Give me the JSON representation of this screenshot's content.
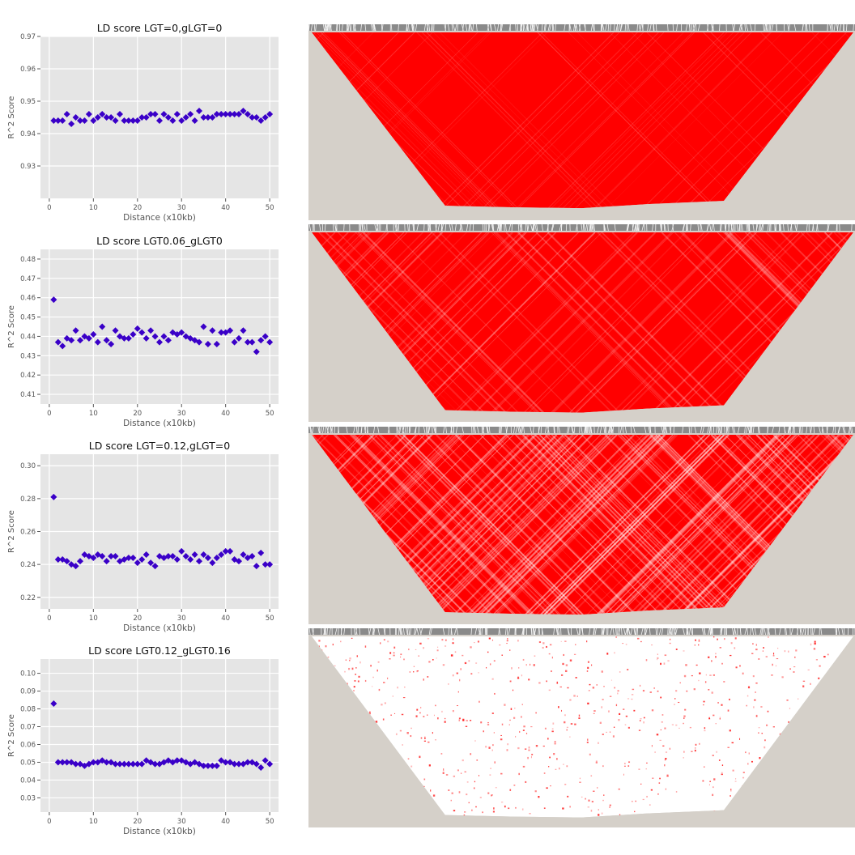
{
  "colors": {
    "panel_bg": "#e5e5e5",
    "grid": "#ffffff",
    "marker": "#3a00c8",
    "axis_text": "#555555",
    "title_text": "#111111",
    "heatmap_bg": "#d5d0c9",
    "heatmap_red": "#ff0000"
  },
  "chart_data": [
    {
      "type": "scatter",
      "title": "LD score LGT=0,gLGT=0",
      "xlabel": "Distance (x10kb)",
      "ylabel": "R^2 Score",
      "xlim": [
        -2,
        52
      ],
      "ylim": [
        0.92,
        0.97
      ],
      "xticks": [
        0,
        10,
        20,
        30,
        40,
        50
      ],
      "yticks": [
        0.93,
        0.94,
        0.95,
        0.96,
        0.97
      ],
      "x": [
        1,
        2,
        3,
        4,
        5,
        6,
        7,
        8,
        9,
        10,
        11,
        12,
        13,
        14,
        15,
        16,
        17,
        18,
        19,
        20,
        21,
        22,
        23,
        24,
        25,
        26,
        27,
        28,
        29,
        30,
        31,
        32,
        33,
        34,
        35,
        36,
        37,
        38,
        39,
        40,
        41,
        42,
        43,
        44,
        45,
        46,
        47,
        48,
        49,
        50
      ],
      "values": [
        0.944,
        0.944,
        0.944,
        0.946,
        0.943,
        0.945,
        0.944,
        0.944,
        0.946,
        0.944,
        0.945,
        0.946,
        0.945,
        0.945,
        0.944,
        0.946,
        0.944,
        0.944,
        0.944,
        0.944,
        0.945,
        0.945,
        0.946,
        0.946,
        0.944,
        0.946,
        0.945,
        0.944,
        0.946,
        0.944,
        0.945,
        0.946,
        0.944,
        0.947,
        0.945,
        0.945,
        0.945,
        0.946,
        0.946,
        0.946,
        0.946,
        0.946,
        0.946,
        0.947,
        0.946,
        0.945,
        0.945,
        0.944,
        0.945,
        0.946
      ],
      "grid": true
    },
    {
      "type": "scatter",
      "title": "LD score LGT0.06_gLGT0",
      "xlabel": "Distance (x10kb)",
      "ylabel": "R^2 Score",
      "xlim": [
        -2,
        52
      ],
      "ylim": [
        0.405,
        0.485
      ],
      "xticks": [
        0,
        10,
        20,
        30,
        40,
        50
      ],
      "yticks": [
        0.41,
        0.42,
        0.43,
        0.44,
        0.45,
        0.46,
        0.47,
        0.48
      ],
      "x": [
        1,
        2,
        3,
        4,
        5,
        6,
        7,
        8,
        9,
        10,
        11,
        12,
        13,
        14,
        15,
        16,
        17,
        18,
        19,
        20,
        21,
        22,
        23,
        24,
        25,
        26,
        27,
        28,
        29,
        30,
        31,
        32,
        33,
        34,
        35,
        36,
        37,
        38,
        39,
        40,
        41,
        42,
        43,
        44,
        45,
        46,
        47,
        48,
        49,
        50
      ],
      "values": [
        0.459,
        0.437,
        0.435,
        0.439,
        0.438,
        0.443,
        0.438,
        0.44,
        0.439,
        0.441,
        0.437,
        0.445,
        0.438,
        0.436,
        0.443,
        0.44,
        0.439,
        0.439,
        0.441,
        0.444,
        0.442,
        0.439,
        0.443,
        0.44,
        0.437,
        0.44,
        0.438,
        0.442,
        0.441,
        0.442,
        0.44,
        0.439,
        0.438,
        0.437,
        0.445,
        0.436,
        0.443,
        0.436,
        0.442,
        0.442,
        0.443,
        0.437,
        0.439,
        0.443,
        0.437,
        0.437,
        0.432,
        0.438,
        0.44,
        0.437
      ],
      "grid": true
    },
    {
      "type": "scatter",
      "title": "LD score LGT=0.12,gLGT=0",
      "xlabel": "Distance (x10kb)",
      "ylabel": "R^2 Score",
      "xlim": [
        -2,
        52
      ],
      "ylim": [
        0.213,
        0.307
      ],
      "xticks": [
        0,
        10,
        20,
        30,
        40,
        50
      ],
      "yticks": [
        0.22,
        0.24,
        0.26,
        0.28,
        0.3
      ],
      "ytick_labels": [
        "0.22",
        "0.24",
        "0.26",
        "0.28",
        "0.30"
      ],
      "x": [
        1,
        2,
        3,
        4,
        5,
        6,
        7,
        8,
        9,
        10,
        11,
        12,
        13,
        14,
        15,
        16,
        17,
        18,
        19,
        20,
        21,
        22,
        23,
        24,
        25,
        26,
        27,
        28,
        29,
        30,
        31,
        32,
        33,
        34,
        35,
        36,
        37,
        38,
        39,
        40,
        41,
        42,
        43,
        44,
        45,
        46,
        47,
        48,
        49,
        50
      ],
      "values": [
        0.281,
        0.243,
        0.243,
        0.242,
        0.24,
        0.239,
        0.242,
        0.246,
        0.245,
        0.244,
        0.246,
        0.245,
        0.242,
        0.245,
        0.245,
        0.242,
        0.243,
        0.244,
        0.244,
        0.241,
        0.243,
        0.246,
        0.241,
        0.239,
        0.245,
        0.244,
        0.245,
        0.245,
        0.243,
        0.248,
        0.245,
        0.243,
        0.246,
        0.242,
        0.246,
        0.244,
        0.241,
        0.244,
        0.246,
        0.248,
        0.248,
        0.243,
        0.242,
        0.246,
        0.244,
        0.245,
        0.239,
        0.247,
        0.24,
        0.24
      ],
      "grid": true
    },
    {
      "type": "scatter",
      "title": "LD score LGT0.12_gLGT0.16",
      "xlabel": "Distance (x10kb)",
      "ylabel": "R^2 Score",
      "xlim": [
        -2,
        52
      ],
      "ylim": [
        0.022,
        0.108
      ],
      "xticks": [
        0,
        10,
        20,
        30,
        40,
        50
      ],
      "yticks": [
        0.03,
        0.04,
        0.05,
        0.06,
        0.07,
        0.08,
        0.09,
        0.1
      ],
      "ytick_labels": [
        "0.03",
        "0.04",
        "0.05",
        "0.06",
        "0.07",
        "0.08",
        "0.09",
        "0.10"
      ],
      "x": [
        1,
        2,
        3,
        4,
        5,
        6,
        7,
        8,
        9,
        10,
        11,
        12,
        13,
        14,
        15,
        16,
        17,
        18,
        19,
        20,
        21,
        22,
        23,
        24,
        25,
        26,
        27,
        28,
        29,
        30,
        31,
        32,
        33,
        34,
        35,
        36,
        37,
        38,
        39,
        40,
        41,
        42,
        43,
        44,
        45,
        46,
        47,
        48,
        49,
        50
      ],
      "values": [
        0.083,
        0.05,
        0.05,
        0.05,
        0.05,
        0.049,
        0.049,
        0.048,
        0.049,
        0.05,
        0.05,
        0.051,
        0.05,
        0.05,
        0.049,
        0.049,
        0.049,
        0.049,
        0.049,
        0.049,
        0.049,
        0.051,
        0.05,
        0.049,
        0.049,
        0.05,
        0.051,
        0.05,
        0.051,
        0.051,
        0.05,
        0.049,
        0.05,
        0.049,
        0.048,
        0.048,
        0.048,
        0.048,
        0.051,
        0.05,
        0.05,
        0.049,
        0.049,
        0.049,
        0.05,
        0.05,
        0.049,
        0.047,
        0.051,
        0.049
      ],
      "grid": true
    }
  ],
  "heatmaps": [
    {
      "name": "ld-heatmap-1",
      "density": 0.95
    },
    {
      "name": "ld-heatmap-2",
      "density": 0.82
    },
    {
      "name": "ld-heatmap-3",
      "density": 0.55
    },
    {
      "name": "ld-heatmap-4",
      "density": 0.05
    }
  ]
}
